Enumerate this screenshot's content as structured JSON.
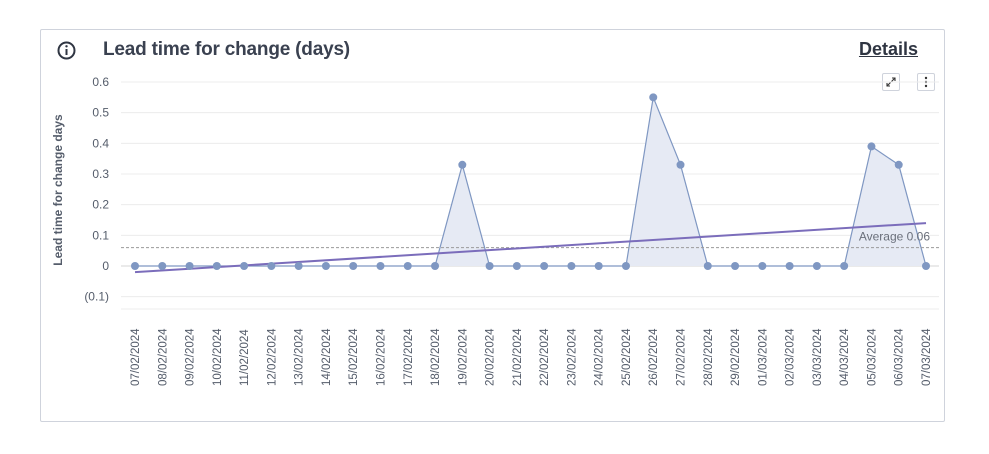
{
  "header": {
    "title": "Lead time for change (days)",
    "details_label": "Details"
  },
  "icons": {
    "info": "info-icon",
    "expand": "expand-icon",
    "menu": "more-vertical-icon"
  },
  "chart_data": {
    "type": "area",
    "title": "Lead time for change (days)",
    "xlabel": "",
    "ylabel": "Lead time for change days",
    "ylim": [
      -0.1,
      0.6
    ],
    "yticks": [
      -0.1,
      0,
      0.1,
      0.2,
      0.3,
      0.4,
      0.5,
      0.6
    ],
    "ytick_labels": [
      "(0.1)",
      "0",
      "0.1",
      "0.2",
      "0.3",
      "0.4",
      "0.5",
      "0.6"
    ],
    "grid": true,
    "categories": [
      "07/02/2024",
      "08/02/2024",
      "09/02/2024",
      "10/02/2024",
      "11/02/2024",
      "12/02/2024",
      "13/02/2024",
      "14/02/2024",
      "15/02/2024",
      "16/02/2024",
      "17/02/2024",
      "18/02/2024",
      "19/02/2024",
      "20/02/2024",
      "21/02/2024",
      "22/02/2024",
      "23/02/2024",
      "24/02/2024",
      "25/02/2024",
      "26/02/2024",
      "27/02/2024",
      "28/02/2024",
      "29/02/2024",
      "01/03/2024",
      "02/03/2024",
      "03/03/2024",
      "04/03/2024",
      "05/03/2024",
      "06/03/2024",
      "07/03/2024"
    ],
    "series": [
      {
        "values": [
          0,
          0,
          0,
          0,
          0,
          0,
          0,
          0,
          0,
          0,
          0,
          0,
          0.33,
          0,
          0,
          0,
          0,
          0,
          0,
          0.55,
          0.33,
          0,
          0,
          0,
          0,
          0,
          0,
          0.39,
          0.33,
          0
        ]
      }
    ],
    "trend": {
      "start": -0.02,
      "end": 0.14
    },
    "average": {
      "label": "Average 0.06",
      "value": 0.06
    },
    "colors": {
      "series": "#7f97c2",
      "fill": "#e6eaf4",
      "trend": "#7b6dbb",
      "average": "#9a9a9a",
      "grid": "#ececec"
    }
  }
}
